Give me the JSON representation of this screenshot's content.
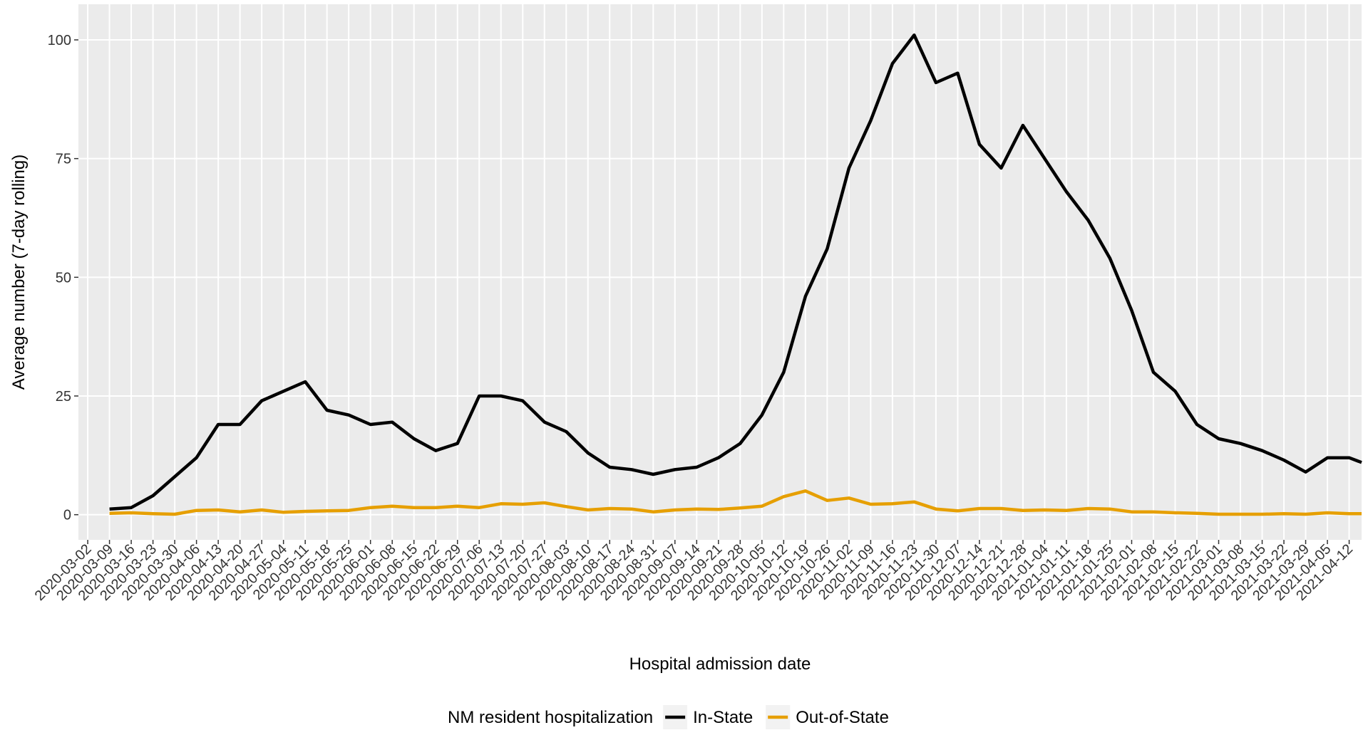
{
  "chart_data": {
    "type": "line",
    "xlabel": "Hospital admission date",
    "ylabel": "Average number (7-day rolling)",
    "legend_title": "NM resident hospitalization",
    "legend_position": "bottom",
    "grid": true,
    "x": [
      "2020-03-09",
      "2020-03-16",
      "2020-03-23",
      "2020-03-30",
      "2020-04-06",
      "2020-04-13",
      "2020-04-20",
      "2020-04-27",
      "2020-05-04",
      "2020-05-11",
      "2020-05-18",
      "2020-05-25",
      "2020-06-01",
      "2020-06-08",
      "2020-06-15",
      "2020-06-22",
      "2020-06-29",
      "2020-07-06",
      "2020-07-13",
      "2020-07-20",
      "2020-07-27",
      "2020-08-03",
      "2020-08-10",
      "2020-08-17",
      "2020-08-24",
      "2020-08-31",
      "2020-09-07",
      "2020-09-14",
      "2020-09-21",
      "2020-09-28",
      "2020-10-05",
      "2020-10-12",
      "2020-10-19",
      "2020-10-26",
      "2020-11-02",
      "2020-11-09",
      "2020-11-16",
      "2020-11-23",
      "2020-11-30",
      "2020-12-07",
      "2020-12-14",
      "2020-12-21",
      "2020-12-28",
      "2021-01-04",
      "2021-01-11",
      "2021-01-18",
      "2021-01-25",
      "2021-02-01",
      "2021-02-08",
      "2021-02-15",
      "2021-02-22",
      "2021-03-01",
      "2021-03-08",
      "2021-03-15",
      "2021-03-22",
      "2021-03-29",
      "2021-04-05",
      "2021-04-12",
      "2021-04-16"
    ],
    "series": [
      {
        "name": "In-State",
        "color": "#000000",
        "values": [
          1.2,
          1.5,
          4,
          8,
          12,
          19,
          19,
          24,
          26,
          28,
          22,
          21,
          19,
          19.5,
          16,
          13.5,
          15,
          25,
          25,
          24,
          19.5,
          17.5,
          13,
          10,
          9.5,
          8.5,
          9.5,
          10,
          12,
          15,
          21,
          30,
          46,
          56,
          73,
          83,
          95,
          101,
          91,
          93,
          78,
          73,
          82,
          75,
          68,
          62,
          54,
          43,
          30,
          26,
          19,
          16,
          15,
          13.5,
          11.5,
          9,
          12,
          12,
          11
        ]
      },
      {
        "name": "Out-of-State",
        "color": "#E69F00",
        "values": [
          0.3,
          0.4,
          0.2,
          0.1,
          0.9,
          1,
          0.6,
          1,
          0.5,
          0.7,
          0.8,
          0.9,
          1.5,
          1.8,
          1.5,
          1.5,
          1.8,
          1.5,
          2.3,
          2.2,
          2.5,
          1.7,
          1,
          1.3,
          1.2,
          0.6,
          1,
          1.2,
          1.1,
          1.4,
          1.8,
          3.8,
          5,
          3,
          3.5,
          2.2,
          2.3,
          2.7,
          1.2,
          0.8,
          1.3,
          1.3,
          0.9,
          1,
          0.9,
          1.3,
          1.2,
          0.6,
          0.6,
          0.4,
          0.3,
          0.1,
          0.1,
          0.1,
          0.2,
          0.1,
          0.4,
          0.2,
          0.2
        ]
      }
    ],
    "xlim": [
      "2020-02-28",
      "2021-04-16"
    ],
    "xticks": [
      "2020-03-02",
      "2020-03-09",
      "2020-03-16",
      "2020-03-23",
      "2020-03-30",
      "2020-04-06",
      "2020-04-13",
      "2020-04-20",
      "2020-04-27",
      "2020-05-04",
      "2020-05-11",
      "2020-05-18",
      "2020-05-25",
      "2020-06-01",
      "2020-06-08",
      "2020-06-15",
      "2020-06-22",
      "2020-06-29",
      "2020-07-06",
      "2020-07-13",
      "2020-07-20",
      "2020-07-27",
      "2020-08-03",
      "2020-08-10",
      "2020-08-17",
      "2020-08-24",
      "2020-08-31",
      "2020-09-07",
      "2020-09-14",
      "2020-09-21",
      "2020-09-28",
      "2020-10-05",
      "2020-10-12",
      "2020-10-19",
      "2020-10-26",
      "2020-11-02",
      "2020-11-09",
      "2020-11-16",
      "2020-11-23",
      "2020-11-30",
      "2020-12-07",
      "2020-12-14",
      "2020-12-21",
      "2020-12-28",
      "2021-01-04",
      "2021-01-11",
      "2021-01-18",
      "2021-01-25",
      "2021-02-01",
      "2021-02-08",
      "2021-02-15",
      "2021-02-22",
      "2021-03-01",
      "2021-03-08",
      "2021-03-15",
      "2021-03-22",
      "2021-03-29",
      "2021-04-05",
      "2021-04-12"
    ],
    "ylim": [
      -5.3,
      107.5
    ],
    "yticks": [
      0,
      25,
      50,
      75,
      100
    ]
  }
}
